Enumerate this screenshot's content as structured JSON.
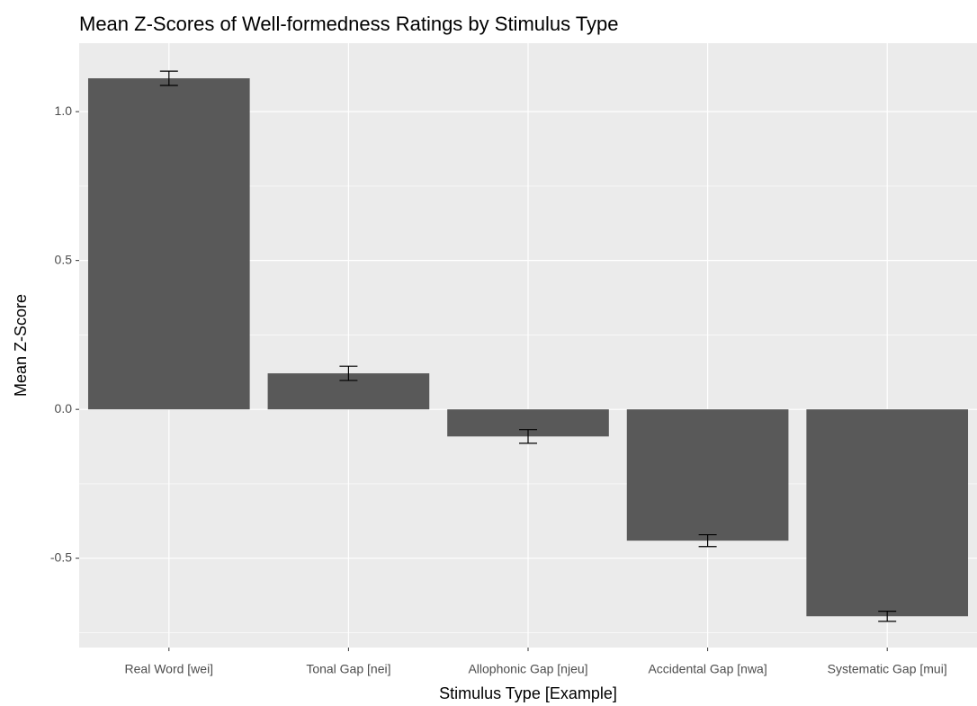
{
  "chart_data": {
    "type": "bar",
    "title": "Mean Z-Scores of Well-formedness Ratings by Stimulus Type",
    "xlabel": "Stimulus Type [Example]",
    "ylabel": "Mean Z-Score",
    "categories": [
      "Real Word [wei]",
      "Tonal Gap [nei]",
      "Allophonic Gap [njeu]",
      "Accidental Gap [nwa]",
      "Systematic Gap [mui]"
    ],
    "values": [
      1.112,
      0.121,
      -0.091,
      -0.441,
      -0.695
    ],
    "errors": [
      0.024,
      0.024,
      0.023,
      0.02,
      0.017
    ],
    "color": "#595959",
    "ylim": [
      -0.8,
      1.23
    ],
    "yticks": [
      {
        "value": -0.5,
        "label": "-0.5"
      },
      {
        "value": 0,
        "label": "0.0"
      },
      {
        "value": 0.5,
        "label": "0.5"
      },
      {
        "value": 1,
        "label": "1.0"
      }
    ],
    "y_minor_ticks": [
      -0.75,
      -0.25,
      0.25,
      0.75
    ],
    "grid": true
  }
}
